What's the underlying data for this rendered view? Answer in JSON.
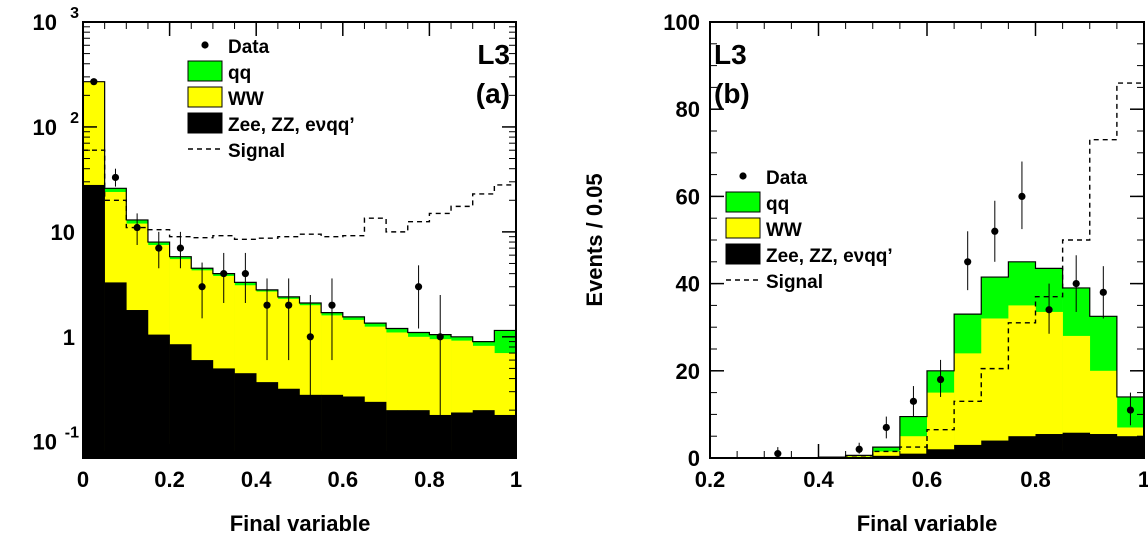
{
  "chart_data": [
    {
      "panel": "(a)",
      "type": "bar",
      "stacked": true,
      "title_lines": [
        "L3",
        "(a)"
      ],
      "xlabel": "Final variable",
      "ylabel": "",
      "log_y": true,
      "xlim": [
        0,
        1
      ],
      "ylim": [
        0.07,
        1000
      ],
      "bin_width": 0.05,
      "x_ticks": [
        "0",
        "0.2",
        "0.4",
        "0.6",
        "0.8",
        "1"
      ],
      "y_ticks": [
        {
          "base": "10",
          "exp": "3",
          "value": 1000
        },
        {
          "base": "10",
          "exp": "2",
          "value": 100
        },
        {
          "base": "10",
          "exp": "",
          "value": 10
        },
        {
          "base": "1",
          "exp": "",
          "value": 1
        },
        {
          "base": "10",
          "exp": "-1",
          "value": 0.1
        }
      ],
      "legend": {
        "placement": "top",
        "entries": [
          "Data",
          "qq",
          "WW",
          "Zee, ZZ, eνqq’",
          "Signal"
        ]
      },
      "bin_edges": [
        0,
        0.05,
        0.1,
        0.15,
        0.2,
        0.25,
        0.3,
        0.35,
        0.4,
        0.45,
        0.5,
        0.55,
        0.6,
        0.65,
        0.7,
        0.75,
        0.8,
        0.85,
        0.9,
        0.95,
        1.0
      ],
      "stack": [
        {
          "name": "Zee, ZZ, eνqq’",
          "color": "#000000",
          "totals": [
            28,
            3.3,
            1.8,
            1.05,
            0.85,
            0.6,
            0.5,
            0.45,
            0.37,
            0.32,
            0.28,
            0.28,
            0.27,
            0.24,
            0.2,
            0.2,
            0.18,
            0.19,
            0.2,
            0.18,
            0.16
          ]
        },
        {
          "name": "WW",
          "color": "#ffff00",
          "totals": [
            270,
            24,
            12,
            7.5,
            5.5,
            4.3,
            3.8,
            3.1,
            2.7,
            2.3,
            2.0,
            1.6,
            1.45,
            1.25,
            1.1,
            1.0,
            0.95,
            0.92,
            0.82,
            0.7,
            0.55
          ]
        },
        {
          "name": "qq",
          "color": "#00ff00",
          "totals": [
            270,
            26,
            13,
            8,
            5.8,
            4.5,
            4,
            3.3,
            2.8,
            2.4,
            2.1,
            1.7,
            1.55,
            1.35,
            1.2,
            1.1,
            1.05,
            1.0,
            0.9,
            1.15,
            0.8
          ]
        }
      ],
      "signal": {
        "name": "Signal",
        "style": "dashed",
        "values": [
          60,
          20,
          11,
          10.5,
          9,
          8.8,
          9.2,
          8.5,
          8.7,
          9.0,
          9.5,
          9.0,
          9.2,
          13.5,
          10.0,
          12.5,
          15.0,
          17.5,
          23.0,
          28.0,
          52.0
        ]
      },
      "data_points": {
        "name": "Data",
        "x": [
          0.025,
          0.075,
          0.125,
          0.175,
          0.225,
          0.275,
          0.325,
          0.375,
          0.425,
          0.475,
          0.525,
          0.575,
          0.775,
          0.825
        ],
        "y": [
          270,
          33,
          11,
          7,
          7,
          3,
          4,
          4,
          2,
          2,
          1,
          2,
          3,
          1
        ],
        "err_lo": [
          255,
          27,
          7.5,
          4.5,
          4.5,
          1.5,
          2.1,
          2.1,
          0.6,
          0.6,
          0.1,
          0.6,
          1.2,
          0.1
        ],
        "err_hi": [
          290,
          40,
          15,
          10,
          10,
          5.1,
          6.3,
          6.3,
          3.6,
          3.6,
          2.5,
          3.6,
          4.8,
          2.5
        ]
      }
    },
    {
      "panel": "(b)",
      "type": "bar",
      "stacked": true,
      "title_lines": [
        "L3",
        "(b)"
      ],
      "xlabel": "Final variable",
      "ylabel": "Events / 0.05",
      "log_y": false,
      "xlim": [
        0.2,
        1
      ],
      "ylim": [
        0,
        100
      ],
      "bin_width": 0.05,
      "x_ticks": [
        "0.2",
        "0.4",
        "0.6",
        "0.8",
        "1"
      ],
      "y_ticks": [
        "0",
        "20",
        "40",
        "60",
        "80",
        "100"
      ],
      "legend": {
        "placement": "middle-left",
        "entries": [
          "Data",
          "qq",
          "WW",
          "Zee, ZZ, eνqq’",
          "Signal"
        ]
      },
      "bin_edges": [
        0.2,
        0.25,
        0.3,
        0.35,
        0.4,
        0.45,
        0.5,
        0.55,
        0.6,
        0.65,
        0.7,
        0.75,
        0.8,
        0.85,
        0.9,
        0.95,
        1.0
      ],
      "stack": [
        {
          "name": "Zee, ZZ, eνqq’",
          "color": "#000000",
          "totals": [
            0,
            0,
            0,
            0,
            0,
            0.2,
            0.5,
            1.0,
            2.0,
            3.0,
            4.0,
            5.0,
            5.5,
            5.8,
            5.5,
            5.0,
            2.0
          ]
        },
        {
          "name": "WW",
          "color": "#ffff00",
          "totals": [
            0,
            0,
            0,
            0,
            0.1,
            0.4,
            1.5,
            5.0,
            15.0,
            24.0,
            32.0,
            35.0,
            33.5,
            28.0,
            20.0,
            7.0,
            5.0
          ]
        },
        {
          "name": "qq",
          "color": "#00ff00",
          "totals": [
            0,
            0,
            0,
            0,
            0.2,
            0.6,
            2.5,
            9.5,
            20.0,
            33.0,
            41.5,
            45.0,
            43.5,
            39.0,
            32.5,
            14.0,
            7.0
          ]
        }
      ],
      "signal": {
        "name": "Signal",
        "style": "dashed",
        "values": [
          0,
          0,
          0,
          0,
          0,
          0.5,
          1.5,
          2.5,
          6.5,
          13.0,
          20.5,
          31.0,
          37.0,
          50.0,
          73.0,
          86.0,
          86.0
        ]
      },
      "data_points": {
        "name": "Data",
        "x": [
          0.325,
          0.475,
          0.525,
          0.575,
          0.625,
          0.675,
          0.725,
          0.775,
          0.825,
          0.875,
          0.925,
          0.975
        ],
        "y": [
          1,
          2,
          7,
          13,
          18,
          45,
          52,
          60,
          34,
          40,
          38,
          11
        ],
        "err_lo": [
          0,
          1,
          4.5,
          9.5,
          14,
          38.5,
          45,
          52.5,
          28.5,
          33.5,
          32,
          7.5
        ],
        "err_hi": [
          2.5,
          3.5,
          9.5,
          16.5,
          22.5,
          52,
          59,
          68,
          40,
          46.5,
          44,
          15
        ]
      }
    }
  ]
}
